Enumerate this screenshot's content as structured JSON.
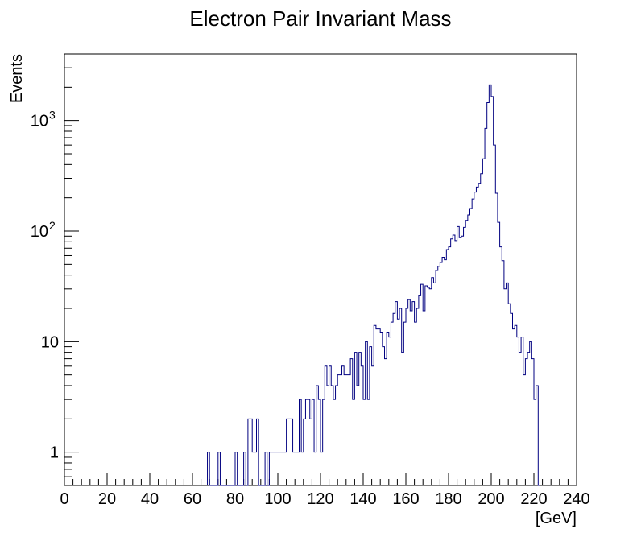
{
  "chart_data": {
    "type": "histogram",
    "title": "Electron Pair Invariant Mass",
    "xlabel": "[GeV]",
    "ylabel": "Events",
    "xlim": [
      0,
      240
    ],
    "ylim": [
      0.5,
      4000
    ],
    "yscale": "log",
    "bin_width": 1,
    "line_color": "#000080",
    "x_ticks": [
      "0",
      "20",
      "40",
      "60",
      "80",
      "100",
      "120",
      "140",
      "160",
      "180",
      "200",
      "220",
      "240"
    ],
    "y_ticks": [
      {
        "value": 1,
        "base": "1",
        "exp": ""
      },
      {
        "value": 10,
        "base": "10",
        "exp": ""
      },
      {
        "value": 100,
        "base": "10",
        "exp": "2"
      },
      {
        "value": 1000,
        "base": "10",
        "exp": "3"
      }
    ],
    "bins": [
      {
        "x": 67,
        "y": 1
      },
      {
        "x": 68,
        "y": 0
      },
      {
        "x": 71,
        "y": 0
      },
      {
        "x": 72,
        "y": 1
      },
      {
        "x": 73,
        "y": 0
      },
      {
        "x": 79,
        "y": 0
      },
      {
        "x": 80,
        "y": 1
      },
      {
        "x": 81,
        "y": 0
      },
      {
        "x": 83,
        "y": 0
      },
      {
        "x": 84,
        "y": 1
      },
      {
        "x": 85,
        "y": 0
      },
      {
        "x": 86,
        "y": 2
      },
      {
        "x": 88,
        "y": 1
      },
      {
        "x": 90,
        "y": 2
      },
      {
        "x": 91,
        "y": 0
      },
      {
        "x": 94,
        "y": 1
      },
      {
        "x": 95,
        "y": 0
      },
      {
        "x": 96,
        "y": 1
      },
      {
        "x": 104,
        "y": 2
      },
      {
        "x": 107,
        "y": 1
      },
      {
        "x": 110,
        "y": 3
      },
      {
        "x": 111,
        "y": 1
      },
      {
        "x": 112,
        "y": 2
      },
      {
        "x": 113,
        "y": 3
      },
      {
        "x": 115,
        "y": 2
      },
      {
        "x": 116,
        "y": 3
      },
      {
        "x": 117,
        "y": 1
      },
      {
        "x": 118,
        "y": 4
      },
      {
        "x": 119,
        "y": 3
      },
      {
        "x": 120,
        "y": 1
      },
      {
        "x": 121,
        "y": 3
      },
      {
        "x": 122,
        "y": 6
      },
      {
        "x": 123,
        "y": 4
      },
      {
        "x": 124,
        "y": 6
      },
      {
        "x": 125,
        "y": 4
      },
      {
        "x": 126,
        "y": 3
      },
      {
        "x": 127,
        "y": 4
      },
      {
        "x": 128,
        "y": 5
      },
      {
        "x": 130,
        "y": 6
      },
      {
        "x": 131,
        "y": 5
      },
      {
        "x": 134,
        "y": 7
      },
      {
        "x": 135,
        "y": 3
      },
      {
        "x": 136,
        "y": 8
      },
      {
        "x": 137,
        "y": 4
      },
      {
        "x": 138,
        "y": 8
      },
      {
        "x": 139,
        "y": 6
      },
      {
        "x": 140,
        "y": 3
      },
      {
        "x": 141,
        "y": 10
      },
      {
        "x": 142,
        "y": 3
      },
      {
        "x": 143,
        "y": 9
      },
      {
        "x": 144,
        "y": 6
      },
      {
        "x": 145,
        "y": 14
      },
      {
        "x": 146,
        "y": 13
      },
      {
        "x": 148,
        "y": 12
      },
      {
        "x": 149,
        "y": 9
      },
      {
        "x": 150,
        "y": 7
      },
      {
        "x": 151,
        "y": 12
      },
      {
        "x": 152,
        "y": 11
      },
      {
        "x": 153,
        "y": 15
      },
      {
        "x": 154,
        "y": 18
      },
      {
        "x": 155,
        "y": 23
      },
      {
        "x": 156,
        "y": 16
      },
      {
        "x": 157,
        "y": 20
      },
      {
        "x": 158,
        "y": 8
      },
      {
        "x": 159,
        "y": 15
      },
      {
        "x": 160,
        "y": 20
      },
      {
        "x": 161,
        "y": 24
      },
      {
        "x": 162,
        "y": 19
      },
      {
        "x": 163,
        "y": 23
      },
      {
        "x": 164,
        "y": 15
      },
      {
        "x": 165,
        "y": 20
      },
      {
        "x": 166,
        "y": 26
      },
      {
        "x": 167,
        "y": 33
      },
      {
        "x": 168,
        "y": 19
      },
      {
        "x": 169,
        "y": 32
      },
      {
        "x": 170,
        "y": 31
      },
      {
        "x": 171,
        "y": 30
      },
      {
        "x": 172,
        "y": 38
      },
      {
        "x": 173,
        "y": 34
      },
      {
        "x": 174,
        "y": 44
      },
      {
        "x": 175,
        "y": 48
      },
      {
        "x": 176,
        "y": 52
      },
      {
        "x": 177,
        "y": 58
      },
      {
        "x": 178,
        "y": 55
      },
      {
        "x": 179,
        "y": 68
      },
      {
        "x": 180,
        "y": 72
      },
      {
        "x": 181,
        "y": 85
      },
      {
        "x": 182,
        "y": 92
      },
      {
        "x": 183,
        "y": 82
      },
      {
        "x": 184,
        "y": 110
      },
      {
        "x": 185,
        "y": 87
      },
      {
        "x": 186,
        "y": 90
      },
      {
        "x": 187,
        "y": 108
      },
      {
        "x": 188,
        "y": 125
      },
      {
        "x": 189,
        "y": 140
      },
      {
        "x": 190,
        "y": 160
      },
      {
        "x": 191,
        "y": 195
      },
      {
        "x": 192,
        "y": 225
      },
      {
        "x": 193,
        "y": 250
      },
      {
        "x": 194,
        "y": 270
      },
      {
        "x": 195,
        "y": 330
      },
      {
        "x": 196,
        "y": 450
      },
      {
        "x": 197,
        "y": 850
      },
      {
        "x": 198,
        "y": 1450
      },
      {
        "x": 199,
        "y": 2100
      },
      {
        "x": 200,
        "y": 1650
      },
      {
        "x": 201,
        "y": 600
      },
      {
        "x": 202,
        "y": 220
      },
      {
        "x": 203,
        "y": 120
      },
      {
        "x": 204,
        "y": 72
      },
      {
        "x": 205,
        "y": 54
      },
      {
        "x": 206,
        "y": 30
      },
      {
        "x": 207,
        "y": 34
      },
      {
        "x": 208,
        "y": 22
      },
      {
        "x": 209,
        "y": 18
      },
      {
        "x": 210,
        "y": 13
      },
      {
        "x": 211,
        "y": 14
      },
      {
        "x": 212,
        "y": 11
      },
      {
        "x": 213,
        "y": 8
      },
      {
        "x": 214,
        "y": 11
      },
      {
        "x": 215,
        "y": 5
      },
      {
        "x": 216,
        "y": 7
      },
      {
        "x": 217,
        "y": 8
      },
      {
        "x": 218,
        "y": 10
      },
      {
        "x": 219,
        "y": 7
      },
      {
        "x": 220,
        "y": 3
      },
      {
        "x": 221,
        "y": 4
      },
      {
        "x": 222,
        "y": 0
      }
    ]
  }
}
